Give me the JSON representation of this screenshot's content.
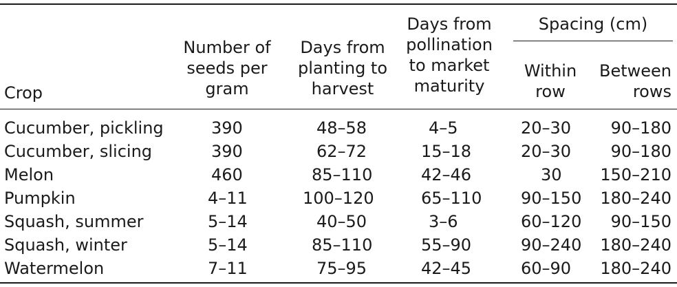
{
  "table": {
    "headers": {
      "crop": "Crop",
      "seeds": "Number of\nseeds per\ngram",
      "planting": "Days from\nplanting to\nharvest",
      "pollination": "Days from\npollination\nto market\nmaturity",
      "spacing_group": "Spacing (cm)",
      "within": "Within\nrow",
      "between": "Between\nrows"
    },
    "rows": [
      {
        "crop": "Cucumber, pickling",
        "seeds": "390",
        "planting": "48–58",
        "pollination": "4–5",
        "within": "20–30",
        "between": "90–180"
      },
      {
        "crop": "Cucumber, slicing",
        "seeds": "390",
        "planting": "62–72",
        "pollination": "15–18",
        "within": "20–30",
        "between": "90–180"
      },
      {
        "crop": "Melon",
        "seeds": "460",
        "planting": "85–110",
        "pollination": "42–46",
        "within": "30",
        "between": "150–210"
      },
      {
        "crop": "Pumpkin",
        "seeds": "4–11",
        "planting": "100–120",
        "pollination": "65–110",
        "within": "90–150",
        "between": "180–240"
      },
      {
        "crop": "Squash, summer",
        "seeds": "5–14",
        "planting": "40–50",
        "pollination": "3–6",
        "within": "60–120",
        "between": "90–150"
      },
      {
        "crop": "Squash, winter",
        "seeds": "5–14",
        "planting": "85–110",
        "pollination": "55–90",
        "within": "90–240",
        "between": "180–240"
      },
      {
        "crop": "Watermelon",
        "seeds": "7–11",
        "planting": "75–95",
        "pollination": "42–45",
        "within": "60–90",
        "between": "180–240"
      }
    ]
  }
}
